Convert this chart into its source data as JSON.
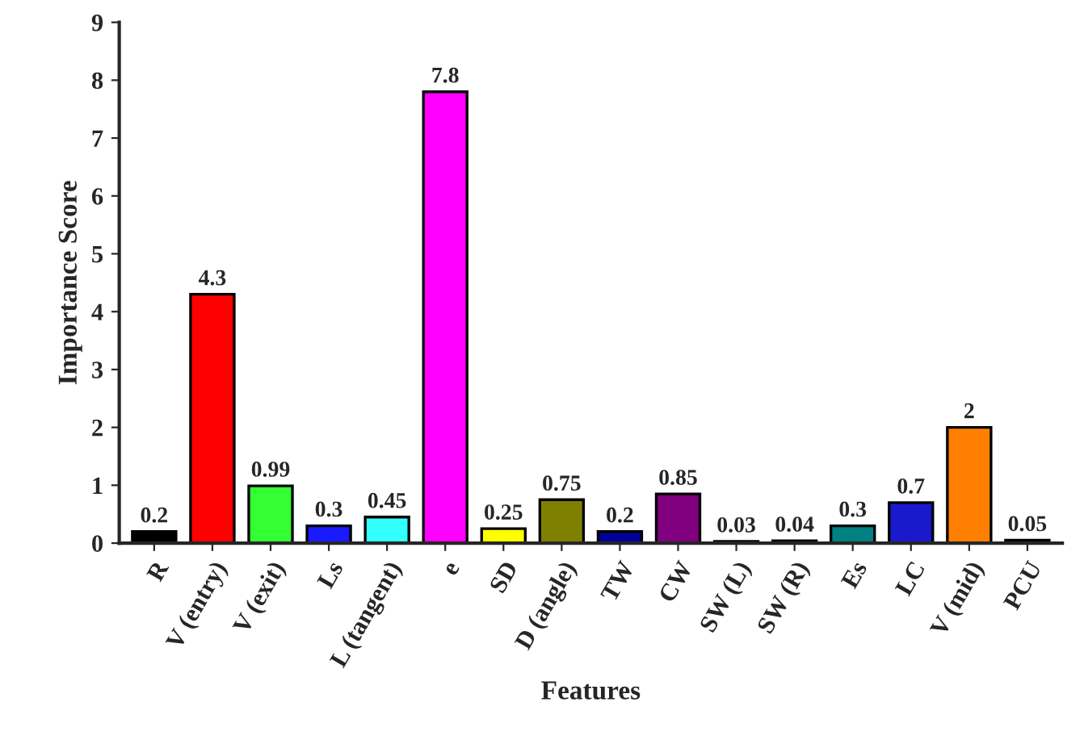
{
  "chart_data": {
    "type": "bar",
    "xlabel": "Features",
    "ylabel": "Importance Score",
    "categories": [
      "R",
      "V (entry)",
      "V (exit)",
      "Ls",
      "L (tangent)",
      "e",
      "SD",
      "D (angle)",
      "TW",
      "CW",
      "SW (L)",
      "SW (R)",
      "Es",
      "LC",
      "V (mid)",
      "PCU"
    ],
    "values": [
      0.2,
      4.3,
      0.99,
      0.3,
      0.45,
      7.8,
      0.25,
      0.75,
      0.2,
      0.85,
      0.03,
      0.04,
      0.3,
      0.7,
      2,
      0.05
    ],
    "colors": [
      "#000000",
      "#ff0000",
      "#33ff33",
      "#1a1aff",
      "#33ffff",
      "#ff00ff",
      "#ffff00",
      "#808000",
      "#000099",
      "#800080",
      "#808080",
      "#606060",
      "#008080",
      "#1a1acc",
      "#ff8000",
      "#336633"
    ],
    "ylim": [
      0,
      9
    ],
    "yticks": [
      0,
      1,
      2,
      3,
      4,
      5,
      6,
      7,
      8,
      9
    ],
    "data_labels": true,
    "grid": false
  }
}
